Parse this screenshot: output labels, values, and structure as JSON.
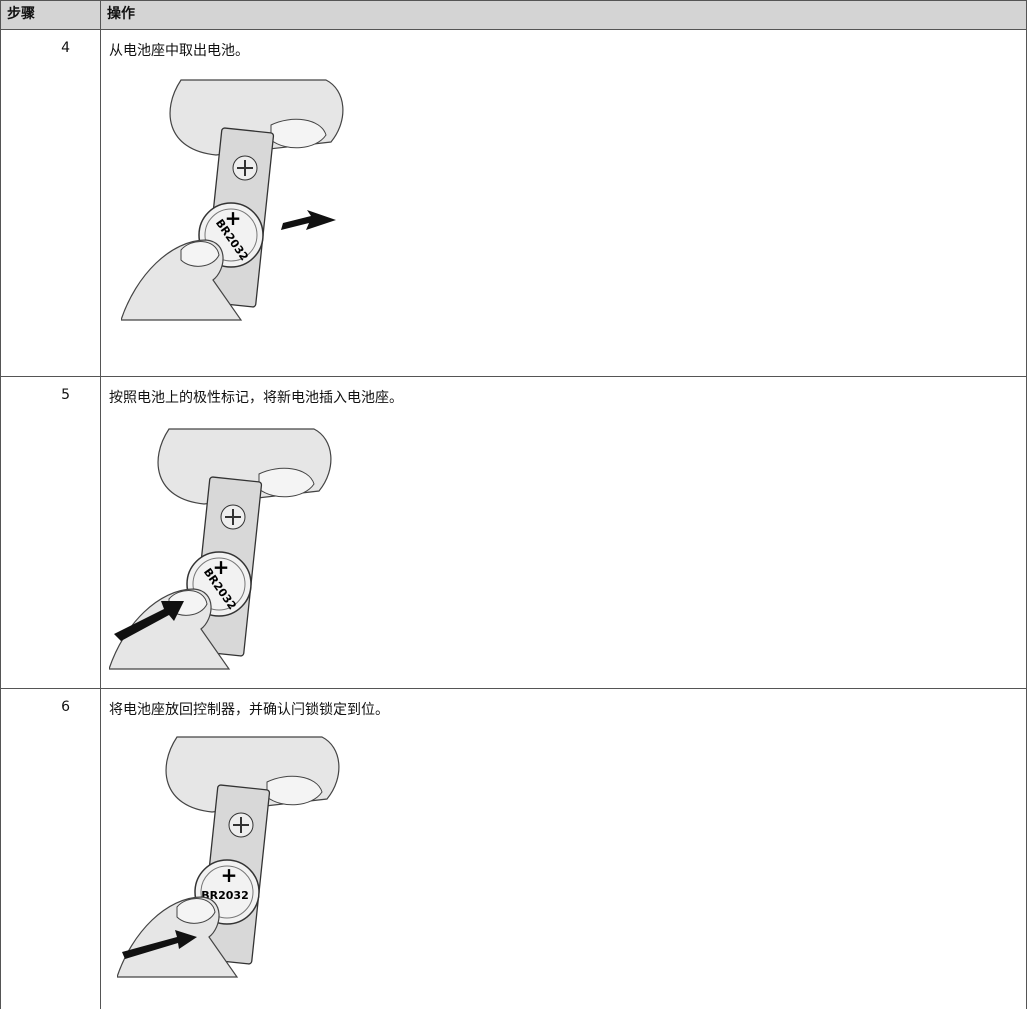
{
  "table": {
    "header": [
      "步骤",
      "操作"
    ],
    "rows": [
      {
        "step": "4",
        "text": "从电池座中取出电池。",
        "figure": {
          "plus": "+",
          "label": "BR2032"
        }
      },
      {
        "step": "5",
        "text": "按照电池上的极性标记，将新电池插入电池座。",
        "figure": {
          "plus": "+",
          "label": "BR2032"
        }
      },
      {
        "step": "6",
        "text": "将电池座放回控制器，并确认闩锁锁定到位。",
        "figure": {
          "plus": "+",
          "label": "BR2032"
        }
      }
    ]
  }
}
